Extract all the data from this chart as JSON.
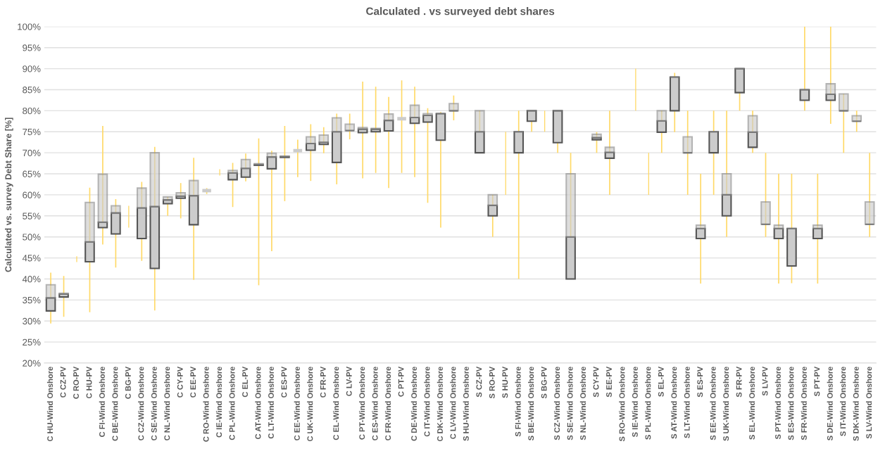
{
  "chart_data": {
    "type": "box",
    "title": "Calculated . vs surveyed debt shares",
    "ylabel": "Calculated vs. survey Debt Share [%]",
    "categories": [
      "C HU-Wind Onshore",
      "C CZ-PV",
      "C RO-PV",
      "C HU-PV",
      "C FI-Wind Onshore",
      "C BE-Wind Onshore",
      "C BG-PV",
      "C CZ-Wind Onshore",
      "C SE-Wind Onshore",
      "C NL-Wind Onshore",
      "C CY-PV",
      "C EE-PV",
      "C RO-Wind Onshore",
      "C IE-Wind Onshore",
      "C PL-Wind Onshore",
      "C EL-PV",
      "C AT-Wind Onshore",
      "C LT-Wind Onshore",
      "C ES-PV",
      "C EE-Wind Onshore",
      "C UK-Wind Onshore",
      "C FR-PV",
      "C EL-Wind Onshore",
      "C LV-PV",
      "C PT-Wind Onshore",
      "C ES-Wind Onshore",
      "C FR-Wind Onshore",
      "C PT-PV",
      "C DE-Wind Onshore",
      "C IT-Wind Onshore",
      "C DK-Wind Onshore",
      "C LV-Wind Onshore",
      "S HU-Wind Onshore",
      "S CZ-PV",
      "S RO-PV",
      "S HU-PV",
      "S FI-Wind Onshore",
      "S BE-Wind Onshore",
      "S BG-PV",
      "S CZ-Wind Onshore",
      "S SE-Wind Onshore",
      "S NL-Wind Onshore",
      "S CY-PV",
      "S EE-PV",
      "S RO-Wind Onshore",
      "S IE-Wind Onshore",
      "S PL-Wind Onshore",
      "S EL-PV",
      "S AT-Wind Onshore",
      "S LT-Wind Onshore",
      "S ES-PV",
      "S EE-Wind Onshore",
      "S UK-Wind Onshore",
      "S FR-PV",
      "S EL-Wind Onshore",
      "S LV-PV",
      "S PT-Wind Onshore",
      "S ES-Wind Onshore",
      "S FR-Wind Onshore",
      "S PT-PV",
      "S DE-Wind Onshore",
      "S IT-Wind Onshore",
      "S DK-Wind Onshore",
      "S LV-Wind Onshore"
    ],
    "series": [
      {
        "type": "box",
        "color": "#cccccc",
        "boxes": [
          {
            "low": 29.4,
            "q1": 32.4,
            "median": 35.5,
            "q3": 38.6,
            "high": 41.5
          },
          {
            "low": 31.0,
            "q1": 35.7,
            "median": 36.4,
            "q3": 36.6,
            "high": 40.7
          },
          null,
          {
            "low": 32.1,
            "q1": 44.1,
            "median": 48.8,
            "q3": 58.2,
            "high": 61.7
          },
          {
            "low": 48.2,
            "q1": 52.2,
            "median": 53.5,
            "q3": 64.9,
            "high": 76.4
          },
          {
            "low": 42.7,
            "q1": 50.7,
            "median": 55.7,
            "q3": 57.4,
            "high": 59.0
          },
          null,
          {
            "low": 44.3,
            "q1": 49.6,
            "median": 56.9,
            "q3": 61.6,
            "high": 63.1
          },
          {
            "low": 32.5,
            "q1": 42.5,
            "median": 57.2,
            "q3": 70.0,
            "high": 71.4
          },
          {
            "low": 55.0,
            "q1": 57.9,
            "median": 58.8,
            "q3": 59.5,
            "high": 59.5
          },
          {
            "low": 54.4,
            "q1": 59.2,
            "median": 59.7,
            "q3": 60.5,
            "high": 62.8
          },
          {
            "low": 39.8,
            "q1": 52.9,
            "median": 59.8,
            "q3": 63.4,
            "high": 68.8
          },
          {
            "low": 60.2,
            "q1": 61.0,
            "median": 61.0,
            "q3": 61.0,
            "high": 61.6
          },
          null,
          {
            "low": 57.1,
            "q1": 63.6,
            "median": 65.2,
            "q3": 65.8,
            "high": 67.6
          },
          {
            "low": 63.2,
            "q1": 64.2,
            "median": 66.3,
            "q3": 68.4,
            "high": 69.8
          },
          {
            "low": 38.5,
            "q1": 67.0,
            "median": 67.2,
            "q3": 67.4,
            "high": 73.4
          },
          {
            "low": 46.6,
            "q1": 66.2,
            "median": 69.0,
            "q3": 69.9,
            "high": 70.5
          },
          {
            "low": 58.5,
            "q1": 68.9,
            "median": 69.1,
            "q3": 69.2,
            "high": 76.4
          },
          {
            "low": 64.2,
            "q1": 70.5,
            "median": 70.5,
            "q3": 70.5,
            "high": 73.1
          },
          {
            "low": 63.3,
            "q1": 70.6,
            "median": 72.2,
            "q3": 73.8,
            "high": 76.8
          },
          {
            "low": 69.9,
            "q1": 72.0,
            "median": 72.5,
            "q3": 74.2,
            "high": 76.1
          },
          {
            "low": 62.5,
            "q1": 67.7,
            "median": 75.0,
            "q3": 78.3,
            "high": 79.3
          },
          {
            "low": 73.2,
            "q1": 75.3,
            "median": 75.3,
            "q3": 76.8,
            "high": 79.3
          },
          {
            "low": 63.9,
            "q1": 74.8,
            "median": 75.6,
            "q3": 76.0,
            "high": 86.9
          },
          {
            "low": 65.2,
            "q1": 75.0,
            "median": 75.6,
            "q3": 75.8,
            "high": 85.7
          },
          {
            "low": 61.6,
            "q1": 75.2,
            "median": 77.7,
            "q3": 79.2,
            "high": 83.3
          },
          {
            "low": 65.2,
            "q1": 78.1,
            "median": 78.1,
            "q3": 78.1,
            "high": 87.2
          },
          {
            "low": 64.2,
            "q1": 77.0,
            "median": 78.4,
            "q3": 81.3,
            "high": 85.7
          },
          {
            "low": 58.1,
            "q1": 77.3,
            "median": 78.9,
            "q3": 79.3,
            "high": 80.6
          },
          {
            "low": 52.2,
            "q1": 73.0,
            "median": 79.3,
            "q3": 79.3,
            "high": 79.7
          },
          {
            "low": 77.7,
            "q1": 80.0,
            "median": 80.0,
            "q3": 81.7,
            "high": 83.6
          },
          null,
          {
            "low": 70.0,
            "q1": 70.0,
            "median": 75.0,
            "q3": 80.0,
            "high": 80.0
          },
          {
            "low": 50.0,
            "q1": 55.0,
            "median": 57.5,
            "q3": 60.0,
            "high": 60.0
          },
          null,
          {
            "low": 40.0,
            "q1": 70.0,
            "median": 75.0,
            "q3": 75.0,
            "high": 80.0
          },
          {
            "low": 75.0,
            "q1": 77.5,
            "median": 80.0,
            "q3": 80.0,
            "high": 80.0
          },
          null,
          {
            "low": 70.0,
            "q1": 72.4,
            "median": 80.0,
            "q3": 80.0,
            "high": 80.0
          },
          {
            "low": 40.0,
            "q1": 40.0,
            "median": 50.0,
            "q3": 65.0,
            "high": 70.0
          },
          null,
          {
            "low": 70.0,
            "q1": 73.1,
            "median": 73.6,
            "q3": 74.4,
            "high": 74.9
          },
          {
            "low": 60.0,
            "q1": 68.7,
            "median": 70.1,
            "q3": 71.3,
            "high": 80.0
          },
          null,
          null,
          null,
          {
            "low": 70.0,
            "q1": 74.9,
            "median": 77.6,
            "q3": 80.0,
            "high": 80.0
          },
          {
            "low": 74.9,
            "q1": 80.0,
            "median": 88.0,
            "q3": 88.0,
            "high": 89.0
          },
          {
            "low": 60.0,
            "q1": 70.0,
            "median": 70.0,
            "q3": 73.8,
            "high": 80.0
          },
          {
            "low": 38.9,
            "q1": 49.6,
            "median": 52.0,
            "q3": 52.8,
            "high": 65.0
          },
          {
            "low": 60.0,
            "q1": 70.0,
            "median": 75.0,
            "q3": 75.0,
            "high": 80.0
          },
          {
            "low": 50.0,
            "q1": 55.0,
            "median": 60.0,
            "q3": 65.0,
            "high": 80.0
          },
          {
            "low": 80.0,
            "q1": 84.3,
            "median": 90.0,
            "q3": 90.0,
            "high": 90.0
          },
          {
            "low": 70.0,
            "q1": 71.3,
            "median": 74.9,
            "q3": 78.8,
            "high": 80.0
          },
          {
            "low": 50.0,
            "q1": 53.0,
            "median": 53.0,
            "q3": 58.3,
            "high": 70.0
          },
          {
            "low": 38.9,
            "q1": 49.6,
            "median": 52.0,
            "q3": 52.8,
            "high": 65.0
          },
          {
            "low": 39.0,
            "q1": 43.1,
            "median": 52.0,
            "q3": 52.0,
            "high": 65.0
          },
          {
            "low": 80.0,
            "q1": 82.5,
            "median": 85.0,
            "q3": 85.0,
            "high": 100.0
          },
          {
            "low": 38.9,
            "q1": 49.6,
            "median": 52.0,
            "q3": 52.8,
            "high": 65.0
          },
          {
            "low": 76.9,
            "q1": 82.5,
            "median": 83.9,
            "q3": 86.4,
            "high": 100.0
          },
          {
            "low": 70.0,
            "q1": 80.0,
            "median": 80.0,
            "q3": 84.0,
            "high": 84.0
          },
          {
            "low": 75.0,
            "q1": 77.5,
            "median": 77.5,
            "q3": 78.8,
            "high": 80.0
          },
          {
            "low": 50.0,
            "q1": 53.0,
            "median": 53.0,
            "q3": 58.3,
            "high": 70.0
          }
        ]
      },
      {
        "type": "bar",
        "color": "#ffd966",
        "base": [
          null,
          null,
          44.0,
          null,
          null,
          null,
          52.2,
          null,
          null,
          null,
          null,
          null,
          null,
          64.6,
          null,
          null,
          null,
          null,
          null,
          null,
          null,
          null,
          null,
          null,
          null,
          null,
          null,
          null,
          null,
          null,
          null,
          null,
          null,
          null,
          null,
          60.0,
          null,
          null,
          75.0,
          null,
          null,
          null,
          null,
          null,
          null,
          80.0,
          60.0,
          null,
          null,
          null,
          null,
          null,
          null,
          null,
          null,
          null,
          null,
          null,
          null,
          null,
          null,
          null,
          null,
          null
        ],
        "values": [
          null,
          null,
          1.4,
          null,
          null,
          null,
          5.2,
          null,
          null,
          null,
          null,
          null,
          null,
          1.5,
          null,
          null,
          null,
          null,
          null,
          null,
          null,
          null,
          null,
          null,
          null,
          null,
          null,
          null,
          null,
          null,
          null,
          null,
          null,
          null,
          null,
          15.0,
          null,
          null,
          5.0,
          null,
          null,
          null,
          null,
          null,
          null,
          10.0,
          10.0,
          null,
          null,
          null,
          null,
          null,
          null,
          null,
          null,
          null,
          null,
          null,
          null,
          null,
          null,
          null,
          null,
          null
        ]
      }
    ],
    "ylim": [
      20,
      100
    ],
    "yticks": [
      {
        "value": 20,
        "label": "20%"
      },
      {
        "value": 25,
        "label": "25%"
      },
      {
        "value": 30,
        "label": "30%"
      },
      {
        "value": 35,
        "label": "35%"
      },
      {
        "value": 40,
        "label": "40%"
      },
      {
        "value": 45,
        "label": "45%"
      },
      {
        "value": 50,
        "label": "50%"
      },
      {
        "value": 55,
        "label": "55%"
      },
      {
        "value": 60,
        "label": "60%"
      },
      {
        "value": 65,
        "label": "65%"
      },
      {
        "value": 70,
        "label": "70%"
      },
      {
        "value": 75,
        "label": "75%"
      },
      {
        "value": 80,
        "label": "80%"
      },
      {
        "value": 85,
        "label": "85%"
      },
      {
        "value": 90,
        "label": "90%"
      },
      {
        "value": 95,
        "label": "95%"
      },
      {
        "value": 100,
        "label": "100%"
      }
    ],
    "grid": "y"
  }
}
